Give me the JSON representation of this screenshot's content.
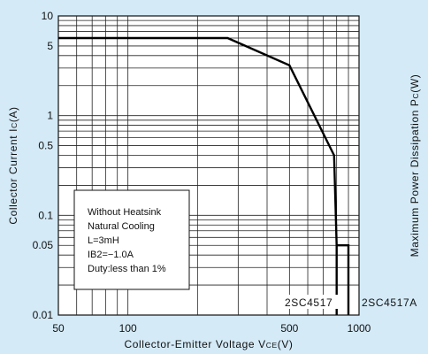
{
  "chart_data": {
    "type": "line",
    "title": "",
    "xlabel": "Collector-Emitter Voltage VCE(V)",
    "xlabel_main": "Collector-Emitter Voltage V",
    "xlabel_sub": "CE",
    "xlabel_unit": "(V)",
    "ylabel": "Collector Current Ic(A)",
    "ylabel_main": "Collector Current I",
    "ylabel_sub": "C",
    "ylabel_unit": "(A)",
    "y2label": "Maximum Power Dissipation Pc(W)",
    "y2label_main": "Maximum Power Dissipation P",
    "y2label_sub": "C",
    "y2label_unit": "(W)",
    "xscale": "log",
    "yscale": "log",
    "xlim": [
      50,
      1000
    ],
    "ylim": [
      0.01,
      10
    ],
    "grid": true,
    "xticks": [
      {
        "value": 50,
        "label": "50"
      },
      {
        "value": 100,
        "label": "100"
      },
      {
        "value": 500,
        "label": "500"
      },
      {
        "value": 1000,
        "label": "1000"
      }
    ],
    "yticks": [
      {
        "value": 0.01,
        "label": "0.01"
      },
      {
        "value": 0.05,
        "label": "0.05"
      },
      {
        "value": 0.1,
        "label": "0.1"
      },
      {
        "value": 0.5,
        "label": "0.5"
      },
      {
        "value": 1,
        "label": "1"
      },
      {
        "value": 5,
        "label": "5"
      },
      {
        "value": 10,
        "label": "10"
      }
    ],
    "series": [
      {
        "name": "2SC4517",
        "x": [
          50,
          270,
          500,
          780,
          800,
          800
        ],
        "y": [
          6,
          6,
          3.2,
          0.4,
          0.05,
          0.01
        ]
      },
      {
        "name": "2SC4517A",
        "x": [
          800,
          900,
          900
        ],
        "y": [
          0.05,
          0.05,
          0.01
        ]
      }
    ],
    "annotation_lines": [
      "Without Heatsink",
      "Natural Cooling",
      "L=3mH",
      "IB2=−1.0A",
      "Duty:less than 1%"
    ]
  }
}
